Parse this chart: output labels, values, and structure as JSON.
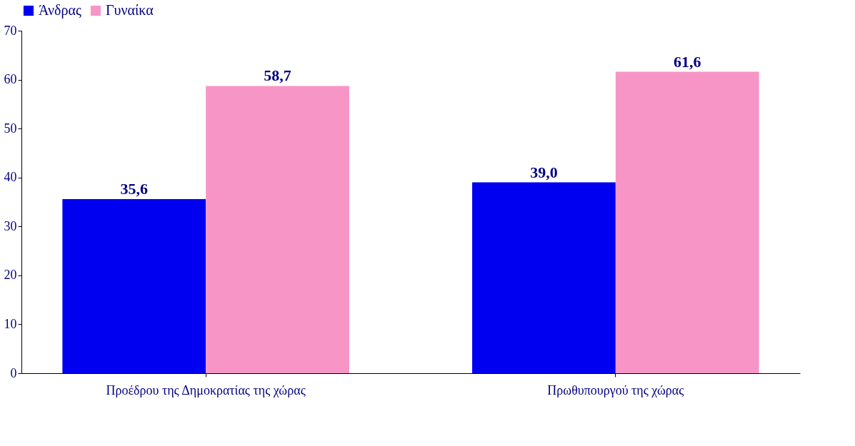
{
  "chart_data": {
    "type": "bar",
    "categories": [
      "Προέδρου της Δημοκρατίας της χώρας",
      "Πρωθυπουργού της χώρας"
    ],
    "series": [
      {
        "name": "Άνδρας",
        "color": "#0000f0",
        "values": [
          35.6,
          39.0
        ],
        "value_labels": [
          "35,6",
          "39,0"
        ]
      },
      {
        "name": "Γυναίκα",
        "color": "#f796c6",
        "values": [
          58.7,
          61.6
        ],
        "value_labels": [
          "58,7",
          "61,6"
        ]
      }
    ],
    "ylim": [
      0,
      70
    ],
    "yticks": [
      0,
      10,
      20,
      30,
      40,
      50,
      60,
      70
    ],
    "grid": false,
    "legend": "top"
  }
}
